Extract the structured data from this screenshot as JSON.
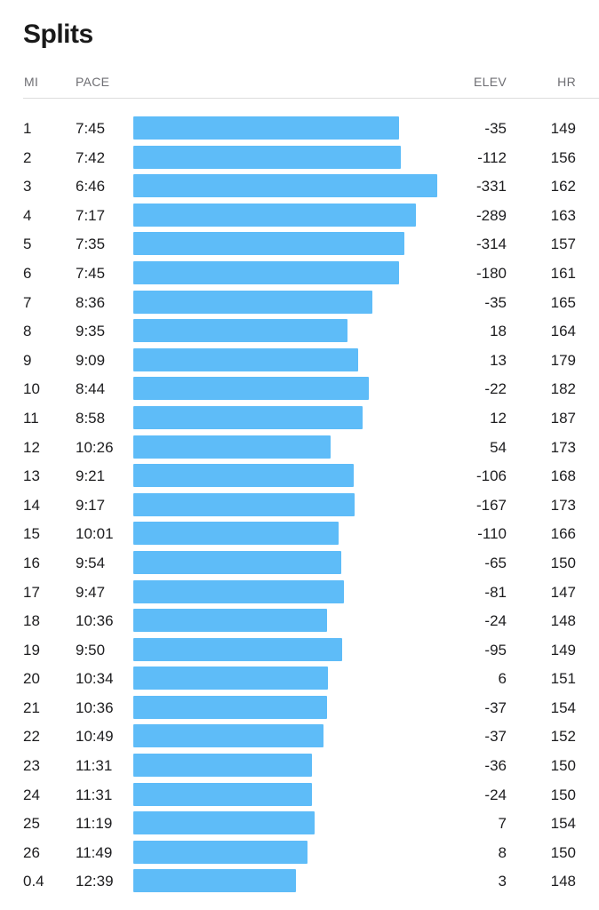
{
  "title": "Splits",
  "headers": {
    "mi": "MI",
    "pace": "PACE",
    "elev": "ELEV",
    "hr": "HR"
  },
  "colors": {
    "bar": "#5ebcf8"
  },
  "splits": [
    {
      "mi": "1",
      "pace": "7:45",
      "elev": "-35",
      "hr": "149"
    },
    {
      "mi": "2",
      "pace": "7:42",
      "elev": "-112",
      "hr": "156"
    },
    {
      "mi": "3",
      "pace": "6:46",
      "elev": "-331",
      "hr": "162"
    },
    {
      "mi": "4",
      "pace": "7:17",
      "elev": "-289",
      "hr": "163"
    },
    {
      "mi": "5",
      "pace": "7:35",
      "elev": "-314",
      "hr": "157"
    },
    {
      "mi": "6",
      "pace": "7:45",
      "elev": "-180",
      "hr": "161"
    },
    {
      "mi": "7",
      "pace": "8:36",
      "elev": "-35",
      "hr": "165"
    },
    {
      "mi": "8",
      "pace": "9:35",
      "elev": "18",
      "hr": "164"
    },
    {
      "mi": "9",
      "pace": "9:09",
      "elev": "13",
      "hr": "179"
    },
    {
      "mi": "10",
      "pace": "8:44",
      "elev": "-22",
      "hr": "182"
    },
    {
      "mi": "11",
      "pace": "8:58",
      "elev": "12",
      "hr": "187"
    },
    {
      "mi": "12",
      "pace": "10:26",
      "elev": "54",
      "hr": "173"
    },
    {
      "mi": "13",
      "pace": "9:21",
      "elev": "-106",
      "hr": "168"
    },
    {
      "mi": "14",
      "pace": "9:17",
      "elev": "-167",
      "hr": "173"
    },
    {
      "mi": "15",
      "pace": "10:01",
      "elev": "-110",
      "hr": "166"
    },
    {
      "mi": "16",
      "pace": "9:54",
      "elev": "-65",
      "hr": "150"
    },
    {
      "mi": "17",
      "pace": "9:47",
      "elev": "-81",
      "hr": "147"
    },
    {
      "mi": "18",
      "pace": "10:36",
      "elev": "-24",
      "hr": "148"
    },
    {
      "mi": "19",
      "pace": "9:50",
      "elev": "-95",
      "hr": "149"
    },
    {
      "mi": "20",
      "pace": "10:34",
      "elev": "6",
      "hr": "151"
    },
    {
      "mi": "21",
      "pace": "10:36",
      "elev": "-37",
      "hr": "154"
    },
    {
      "mi": "22",
      "pace": "10:49",
      "elev": "-37",
      "hr": "152"
    },
    {
      "mi": "23",
      "pace": "11:31",
      "elev": "-36",
      "hr": "150"
    },
    {
      "mi": "24",
      "pace": "11:31",
      "elev": "-24",
      "hr": "150"
    },
    {
      "mi": "25",
      "pace": "11:19",
      "elev": "7",
      "hr": "154"
    },
    {
      "mi": "26",
      "pace": "11:49",
      "elev": "8",
      "hr": "150"
    },
    {
      "mi": "0.4",
      "pace": "12:39",
      "elev": "3",
      "hr": "148"
    }
  ]
}
